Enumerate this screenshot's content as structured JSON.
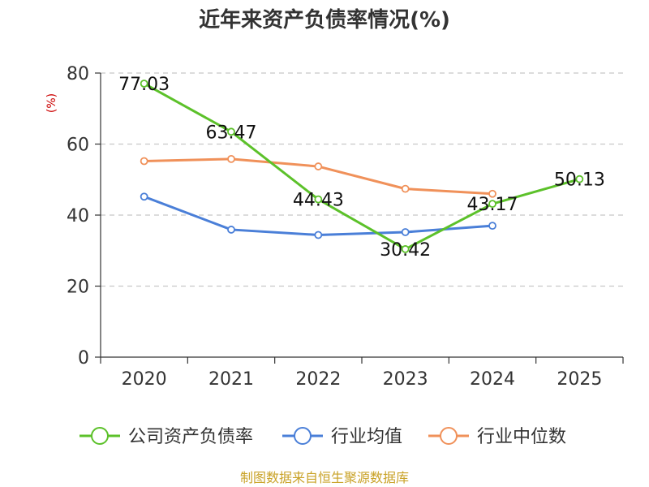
{
  "chart_data": {
    "type": "line",
    "title": "近年来资产负债率情况(%)",
    "ylabel": "(%)",
    "xlabel": "",
    "categories": [
      "2020",
      "2021",
      "2022",
      "2023",
      "2024",
      "2025"
    ],
    "ylim": [
      0,
      80
    ],
    "yticks": [
      0,
      20,
      40,
      60,
      80
    ],
    "grid": true,
    "legend_position": "bottom",
    "series": [
      {
        "name": "公司资产负债率",
        "color": "#5cc12a",
        "values": [
          77.03,
          63.47,
          44.43,
          30.42,
          43.17,
          50.13
        ],
        "labels": [
          "77.03",
          "63.47",
          "44.43",
          "30.42",
          "43.17",
          "50.13"
        ]
      },
      {
        "name": "行业均值",
        "color": "#4a7fd8",
        "values": [
          45.2,
          35.9,
          34.4,
          35.2,
          37.0,
          null
        ]
      },
      {
        "name": "行业中位数",
        "color": "#f0915a",
        "values": [
          55.2,
          55.8,
          53.7,
          47.4,
          46.0,
          null
        ]
      }
    ]
  },
  "source": "制图数据来自恒生聚源数据库"
}
